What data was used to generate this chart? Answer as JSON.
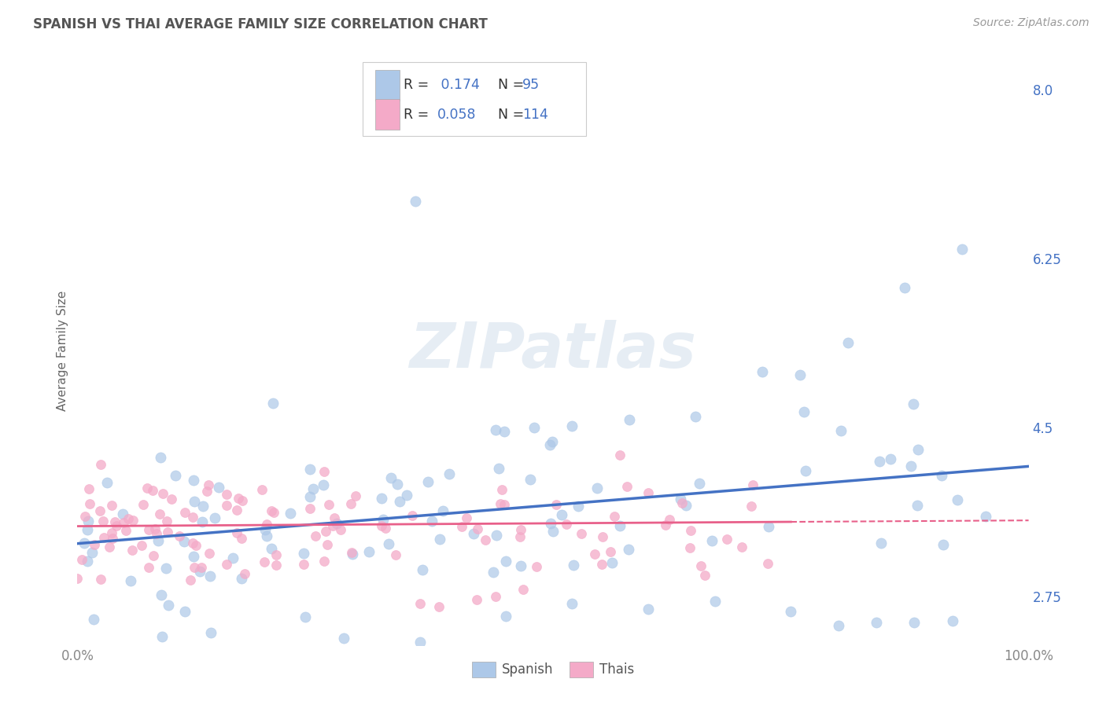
{
  "title": "SPANISH VS THAI AVERAGE FAMILY SIZE CORRELATION CHART",
  "source_text": "Source: ZipAtlas.com",
  "ylabel": "Average Family Size",
  "x_min": 0.0,
  "x_max": 1.0,
  "y_min": 2.25,
  "y_max": 8.35,
  "yticks": [
    2.75,
    4.5,
    6.25,
    8.0
  ],
  "xtick_labels": [
    "0.0%",
    "100.0%"
  ],
  "spanish_color": "#adc8e8",
  "thai_color": "#f4aac8",
  "spanish_line_color": "#4472c4",
  "thai_line_color": "#e8608a",
  "background_color": "#ffffff",
  "grid_color": "#c8c8c8",
  "watermark": "ZIPatlas",
  "legend_R_spanish": "R =  0.174",
  "legend_N_spanish": "N = 95",
  "legend_R_thai": "R = 0.058",
  "legend_N_thai": "N = 114",
  "spanish_N": 95,
  "thai_N": 114,
  "spanish_intercept": 3.3,
  "spanish_slope": 0.8,
  "thai_intercept": 3.48,
  "thai_slope": 0.06,
  "title_fontsize": 12,
  "axis_label_fontsize": 11,
  "tick_fontsize": 12,
  "legend_fontsize": 13,
  "source_fontsize": 10,
  "title_color": "#555555",
  "tick_color": "#888888",
  "ytick_color": "#4472c4"
}
